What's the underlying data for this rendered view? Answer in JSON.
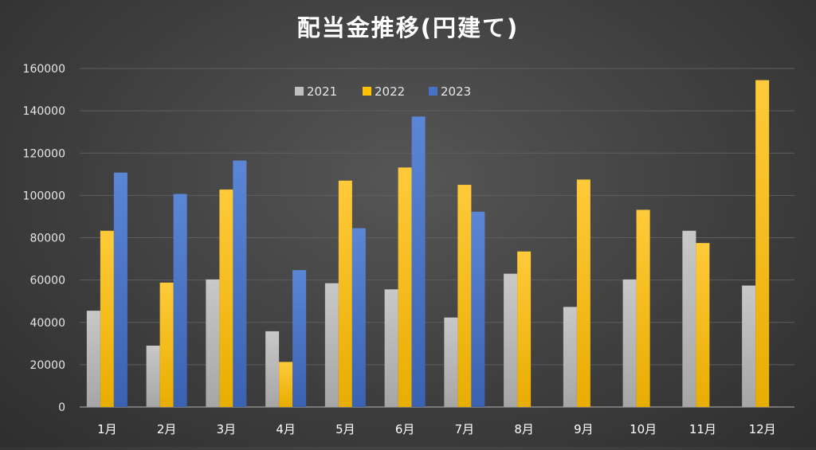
{
  "chart_data": {
    "type": "bar",
    "title": "配当金推移(円建て)",
    "xlabel": "",
    "ylabel": "",
    "categories": [
      "1月",
      "2月",
      "3月",
      "4月",
      "5月",
      "6月",
      "7月",
      "8月",
      "9月",
      "10月",
      "11月",
      "12月"
    ],
    "series": [
      {
        "name": "2021",
        "color": "#bfbfbf",
        "values": [
          45500,
          29000,
          60300,
          35800,
          58500,
          55600,
          42300,
          63000,
          47300,
          60300,
          83300,
          57400
        ]
      },
      {
        "name": "2022",
        "color": "#ffc000",
        "values": [
          83300,
          58800,
          102800,
          21300,
          107000,
          113200,
          105000,
          73500,
          107500,
          93200,
          77500,
          154500
        ]
      },
      {
        "name": "2023",
        "color": "#4472c4",
        "values": [
          110800,
          100700,
          116500,
          64700,
          84500,
          137300,
          92300,
          null,
          null,
          null,
          null,
          null
        ]
      }
    ],
    "ylim": [
      0,
      160000
    ],
    "yticks": [
      0,
      20000,
      40000,
      60000,
      80000,
      100000,
      120000,
      140000,
      160000
    ],
    "grid": true,
    "legend": "top-center"
  }
}
